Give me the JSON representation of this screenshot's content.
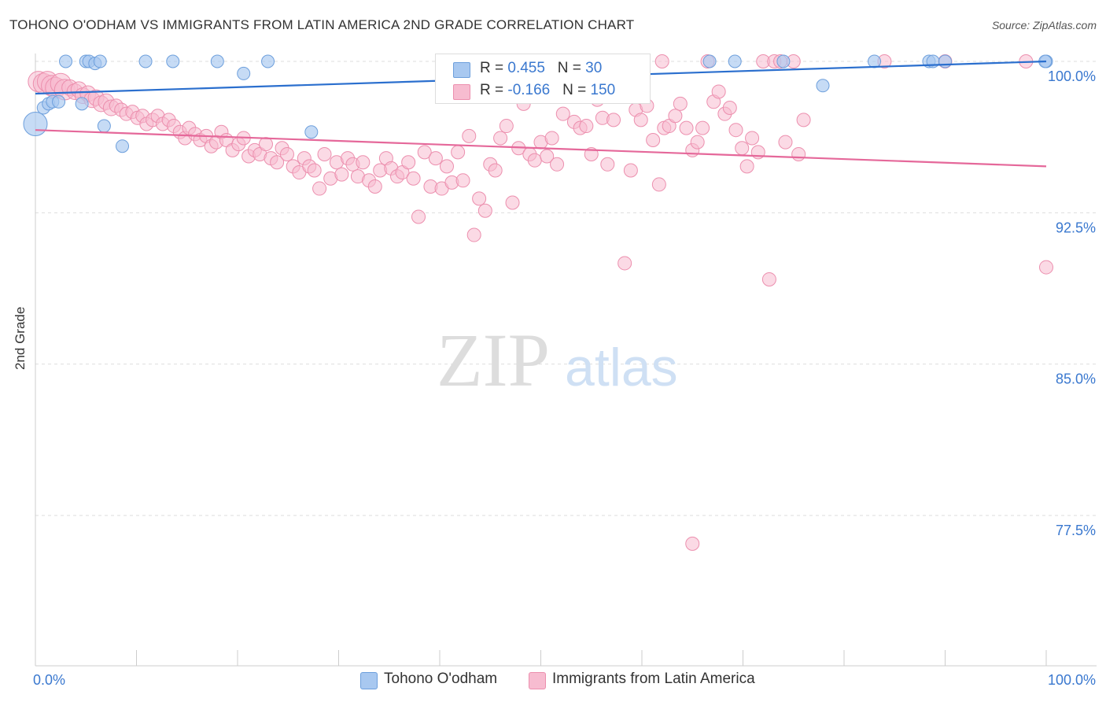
{
  "title": "TOHONO O'ODHAM VS IMMIGRANTS FROM LATIN AMERICA 2ND GRADE CORRELATION CHART",
  "source": "Source: ZipAtlas.com",
  "watermark": {
    "zip": "ZIP",
    "atlas": "atlas"
  },
  "legend_top": {
    "rows": [
      {
        "r_label": "R = ",
        "r_value": "0.455",
        "n_label": "N = ",
        "n_value": "30"
      },
      {
        "r_label": "R = ",
        "r_value": "-0.166",
        "n_label": "N = ",
        "n_value": "150"
      }
    ]
  },
  "chart_data": {
    "type": "scatter",
    "title": "TOHONO O'ODHAM VS IMMIGRANTS FROM LATIN AMERICA 2ND GRADE CORRELATION CHART",
    "xlabel": "",
    "ylabel": "2nd Grade",
    "xlim": [
      0,
      100
    ],
    "ylim": [
      70,
      100.7
    ],
    "x_tick_labels": [
      "0.0%",
      "100.0%"
    ],
    "y_ticks": [
      {
        "value": 100.0,
        "label": "100.0%"
      },
      {
        "value": 92.5,
        "label": "92.5%"
      },
      {
        "value": 85.0,
        "label": "85.0%"
      },
      {
        "value": 77.5,
        "label": "77.5%"
      }
    ],
    "grid": true,
    "legend_position": "bottom",
    "colors": {
      "blue_fill": "#a8c8f0",
      "blue_stroke": "#6d9fdc",
      "blue_line": "#2b6fce",
      "pink_fill": "#f7bcd0",
      "pink_stroke": "#ec8fae",
      "pink_line": "#e5689a",
      "tick_label": "#3a78cf"
    },
    "series": [
      {
        "name": "Tohono O'odham",
        "color": "#a8c8f0",
        "r": 0.455,
        "n": 30,
        "trend": {
          "x": [
            0,
            100
          ],
          "y": [
            98.4,
            100.0
          ]
        },
        "points": [
          [
            0.0,
            96.9
          ],
          [
            0.8,
            97.7
          ],
          [
            1.3,
            97.9
          ],
          [
            1.7,
            98.0
          ],
          [
            2.3,
            98.0
          ],
          [
            3.0,
            100.0
          ],
          [
            4.6,
            97.9
          ],
          [
            5.0,
            100.0
          ],
          [
            5.3,
            100.0
          ],
          [
            5.9,
            99.9
          ],
          [
            6.4,
            100.0
          ],
          [
            6.8,
            96.8
          ],
          [
            8.6,
            95.8
          ],
          [
            10.9,
            100.0
          ],
          [
            13.6,
            100.0
          ],
          [
            18.0,
            100.0
          ],
          [
            20.6,
            99.4
          ],
          [
            23.0,
            100.0
          ],
          [
            27.3,
            96.5
          ],
          [
            47.3,
            100.0
          ],
          [
            66.7,
            100.0
          ],
          [
            69.2,
            100.0
          ],
          [
            74.0,
            100.0
          ],
          [
            77.9,
            98.8
          ],
          [
            83.0,
            100.0
          ],
          [
            88.4,
            100.0
          ],
          [
            88.8,
            100.0
          ],
          [
            90.0,
            100.0
          ],
          [
            100.0,
            100.0
          ],
          [
            99.9,
            100.0
          ]
        ]
      },
      {
        "name": "Immigrants from Latin America",
        "color": "#f7bcd0",
        "r": -0.166,
        "n": 150,
        "trend": {
          "x": [
            0,
            100
          ],
          "y": [
            96.6,
            94.8
          ]
        },
        "points": [
          [
            0.3,
            99.0
          ],
          [
            0.8,
            98.9
          ],
          [
            1.2,
            99.0
          ],
          [
            1.6,
            98.8
          ],
          [
            2.0,
            98.7
          ],
          [
            2.5,
            98.9
          ],
          [
            2.9,
            98.6
          ],
          [
            3.4,
            98.7
          ],
          [
            3.9,
            98.5
          ],
          [
            4.3,
            98.6
          ],
          [
            4.7,
            98.3
          ],
          [
            5.2,
            98.4
          ],
          [
            5.6,
            98.1
          ],
          [
            6.0,
            98.2
          ],
          [
            6.5,
            97.9
          ],
          [
            7.0,
            98.0
          ],
          [
            7.5,
            97.7
          ],
          [
            8.0,
            97.8
          ],
          [
            8.5,
            97.6
          ],
          [
            9.0,
            97.4
          ],
          [
            9.6,
            97.5
          ],
          [
            10.1,
            97.2
          ],
          [
            10.6,
            97.3
          ],
          [
            11.0,
            96.9
          ],
          [
            11.6,
            97.1
          ],
          [
            12.1,
            97.3
          ],
          [
            12.6,
            96.9
          ],
          [
            13.2,
            97.1
          ],
          [
            13.7,
            96.8
          ],
          [
            14.3,
            96.5
          ],
          [
            14.8,
            96.2
          ],
          [
            15.2,
            96.7
          ],
          [
            15.8,
            96.4
          ],
          [
            16.3,
            96.1
          ],
          [
            16.9,
            96.3
          ],
          [
            17.4,
            95.8
          ],
          [
            17.9,
            96.0
          ],
          [
            18.4,
            96.5
          ],
          [
            18.9,
            96.1
          ],
          [
            19.5,
            95.6
          ],
          [
            20.1,
            95.9
          ],
          [
            20.6,
            96.2
          ],
          [
            21.1,
            95.3
          ],
          [
            21.7,
            95.6
          ],
          [
            22.2,
            95.4
          ],
          [
            22.8,
            95.9
          ],
          [
            23.3,
            95.2
          ],
          [
            23.9,
            95.0
          ],
          [
            24.4,
            95.7
          ],
          [
            24.9,
            95.4
          ],
          [
            25.5,
            94.8
          ],
          [
            26.1,
            94.5
          ],
          [
            26.6,
            95.2
          ],
          [
            27.1,
            94.8
          ],
          [
            27.6,
            94.6
          ],
          [
            28.1,
            93.7
          ],
          [
            28.6,
            95.4
          ],
          [
            29.2,
            94.2
          ],
          [
            29.8,
            95.0
          ],
          [
            30.3,
            94.4
          ],
          [
            30.9,
            95.2
          ],
          [
            31.4,
            94.9
          ],
          [
            31.9,
            94.3
          ],
          [
            32.4,
            95.0
          ],
          [
            33.0,
            94.1
          ],
          [
            33.6,
            93.8
          ],
          [
            34.1,
            94.6
          ],
          [
            34.7,
            95.2
          ],
          [
            35.2,
            94.7
          ],
          [
            35.8,
            94.3
          ],
          [
            36.3,
            94.5
          ],
          [
            36.9,
            95.0
          ],
          [
            37.4,
            94.2
          ],
          [
            37.9,
            92.3
          ],
          [
            38.5,
            95.5
          ],
          [
            39.1,
            93.8
          ],
          [
            39.6,
            95.2
          ],
          [
            40.2,
            93.7
          ],
          [
            40.7,
            94.8
          ],
          [
            41.2,
            94.0
          ],
          [
            41.8,
            95.5
          ],
          [
            42.3,
            94.1
          ],
          [
            42.9,
            96.3
          ],
          [
            43.4,
            91.4
          ],
          [
            43.9,
            93.2
          ],
          [
            44.5,
            92.6
          ],
          [
            45.0,
            94.9
          ],
          [
            45.5,
            94.6
          ],
          [
            46.0,
            96.2
          ],
          [
            46.6,
            96.8
          ],
          [
            47.2,
            93.0
          ],
          [
            47.8,
            95.7
          ],
          [
            48.3,
            97.9
          ],
          [
            48.9,
            95.4
          ],
          [
            49.4,
            95.1
          ],
          [
            50.0,
            96.0
          ],
          [
            50.6,
            95.3
          ],
          [
            51.1,
            96.2
          ],
          [
            51.6,
            94.9
          ],
          [
            52.2,
            97.4
          ],
          [
            52.8,
            98.9
          ],
          [
            53.3,
            97.0
          ],
          [
            53.9,
            96.7
          ],
          [
            54.5,
            96.8
          ],
          [
            55.0,
            95.4
          ],
          [
            55.6,
            98.1
          ],
          [
            56.1,
            97.2
          ],
          [
            56.6,
            94.9
          ],
          [
            57.2,
            97.1
          ],
          [
            57.7,
            99.0
          ],
          [
            58.3,
            90.0
          ],
          [
            58.9,
            94.6
          ],
          [
            59.4,
            97.6
          ],
          [
            59.9,
            97.1
          ],
          [
            60.5,
            97.8
          ],
          [
            61.1,
            96.1
          ],
          [
            61.7,
            93.9
          ],
          [
            62.2,
            96.7
          ],
          [
            62.7,
            96.8
          ],
          [
            63.3,
            97.3
          ],
          [
            63.8,
            97.9
          ],
          [
            64.4,
            96.7
          ],
          [
            65.0,
            95.6
          ],
          [
            65.5,
            96.0
          ],
          [
            66.0,
            96.7
          ],
          [
            66.5,
            100.0
          ],
          [
            67.1,
            98.0
          ],
          [
            67.6,
            98.5
          ],
          [
            68.2,
            97.4
          ],
          [
            68.7,
            97.7
          ],
          [
            69.3,
            96.6
          ],
          [
            69.9,
            95.7
          ],
          [
            70.4,
            94.8
          ],
          [
            70.9,
            96.2
          ],
          [
            71.5,
            95.5
          ],
          [
            72.0,
            100.0
          ],
          [
            72.6,
            89.2
          ],
          [
            73.1,
            100.0
          ],
          [
            73.7,
            100.0
          ],
          [
            74.2,
            96.0
          ],
          [
            75.0,
            100.0
          ],
          [
            65.0,
            76.1
          ],
          [
            62.0,
            100.0
          ],
          [
            55.0,
            99.0
          ],
          [
            100.0,
            89.8
          ],
          [
            84.0,
            100.0
          ],
          [
            90.0,
            100.0
          ],
          [
            98.0,
            100.0
          ],
          [
            75.5,
            95.4
          ],
          [
            76.0,
            97.1
          ]
        ]
      }
    ]
  },
  "bottom_legend": [
    {
      "label": "Tohono O'odham"
    },
    {
      "label": "Immigrants from Latin America"
    }
  ]
}
